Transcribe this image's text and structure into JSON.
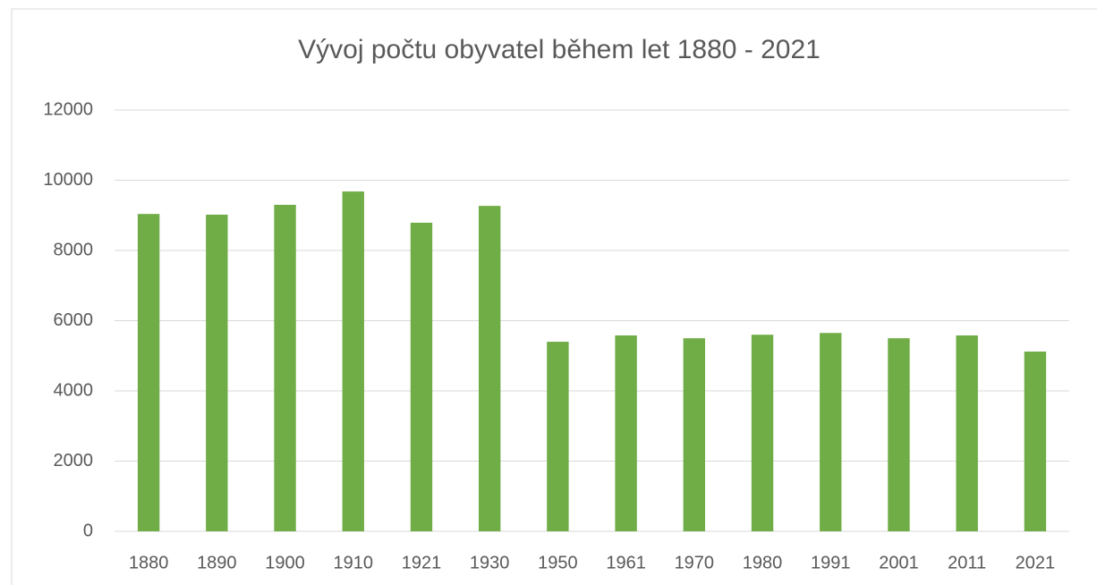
{
  "chart_data": {
    "type": "bar",
    "title": "Vývoj počtu obyvatel během let 1880 - 2021",
    "categories": [
      "1880",
      "1890",
      "1900",
      "1910",
      "1921",
      "1930",
      "1950",
      "1961",
      "1970",
      "1980",
      "1991",
      "2001",
      "2011",
      "2021"
    ],
    "values": [
      9040,
      9020,
      9300,
      9680,
      8790,
      9270,
      5400,
      5580,
      5500,
      5600,
      5650,
      5500,
      5580,
      5120
    ],
    "color": "#70ad47",
    "ylim": [
      0,
      12000
    ],
    "yticks": [
      0,
      2000,
      4000,
      6000,
      8000,
      10000,
      12000
    ],
    "grid": true
  }
}
